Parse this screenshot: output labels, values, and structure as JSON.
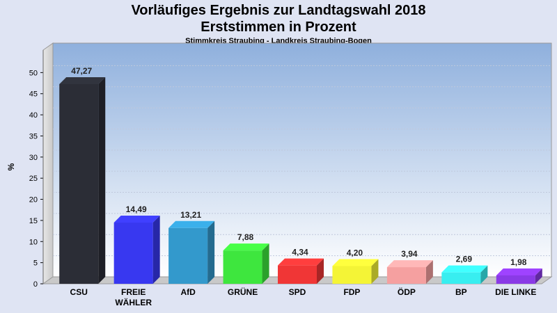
{
  "chart_data": {
    "type": "bar",
    "title": "Vorläufiges Ergebnis zur Landtagswahl 2018",
    "subtitle": "Erststimmen in Prozent",
    "subsubtitle": "Stimmkreis Straubing - Landkreis Straubing-Bogen",
    "ylabel": "%",
    "ylim": [
      0,
      55
    ],
    "yticks": [
      0,
      5,
      10,
      15,
      20,
      25,
      30,
      35,
      40,
      45,
      50
    ],
    "categories": [
      [
        "CSU"
      ],
      [
        "FREIE",
        "WÄHLER"
      ],
      [
        "AfD"
      ],
      [
        "GRÜNE"
      ],
      [
        "SPD"
      ],
      [
        "FDP"
      ],
      [
        "ÖDP"
      ],
      [
        "BP"
      ],
      [
        "DIE LINKE"
      ]
    ],
    "values": [
      47.27,
      14.49,
      13.21,
      7.88,
      4.34,
      4.2,
      3.94,
      2.69,
      1.98
    ],
    "value_labels": [
      "47,27",
      "14,49",
      "13,21",
      "7,88",
      "4,34",
      "4,20",
      "3,94",
      "2,69",
      "1,98"
    ],
    "colors": [
      "#2b2d36",
      "#3838f0",
      "#3399cc",
      "#3ee63e",
      "#f03636",
      "#f4f436",
      "#f5a0a0",
      "#38eef0",
      "#8a3ae6"
    ],
    "grid": true
  }
}
